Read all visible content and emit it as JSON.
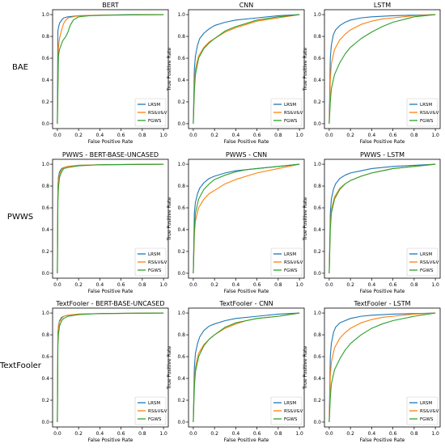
{
  "row_labels": [
    "BAE",
    "PWWS",
    "TextFooler"
  ],
  "colors": {
    "LRSM": "#1f77b4",
    "RS&V&V": "#ff7f0e",
    "FGWS": "#2ca02c"
  },
  "chart_data": [
    {
      "type": "line",
      "title": "BERT",
      "xlabel": "False Positive Rate",
      "ylabel": "",
      "xlim": [
        0,
        1
      ],
      "ylim": [
        0,
        1
      ],
      "xticks": [
        "0.0",
        "0.2",
        "0.4",
        "0.6",
        "0.8",
        "1.0"
      ],
      "yticks": [
        "0.0",
        "0.2",
        "0.4",
        "0.6",
        "0.8",
        "1.0"
      ],
      "legend": "lower-right",
      "series": [
        {
          "name": "LRSM",
          "x": [
            0,
            0.005,
            0.01,
            0.02,
            0.04,
            0.06,
            0.1,
            0.2,
            0.4,
            0.7,
            1
          ],
          "y": [
            0,
            0.85,
            0.88,
            0.92,
            0.95,
            0.97,
            0.98,
            0.99,
            0.995,
            1,
            1
          ]
        },
        {
          "name": "RS&V&V",
          "x": [
            0,
            0.01,
            0.02,
            0.04,
            0.06,
            0.08,
            0.1,
            0.15,
            0.2,
            0.4,
            1
          ],
          "y": [
            0,
            0.7,
            0.78,
            0.86,
            0.92,
            0.95,
            0.97,
            0.98,
            0.99,
            0.995,
            1
          ]
        },
        {
          "name": "FGWS",
          "x": [
            0,
            0.01,
            0.02,
            0.05,
            0.08,
            0.1,
            0.12,
            0.15,
            0.2,
            0.3,
            0.5,
            1
          ],
          "y": [
            0,
            0.62,
            0.68,
            0.76,
            0.8,
            0.84,
            0.9,
            0.95,
            0.98,
            0.99,
            0.995,
            1
          ]
        }
      ]
    },
    {
      "type": "line",
      "title": "CNN",
      "xlabel": "False Positive Rate",
      "ylabel": "True Positive Rate",
      "xlim": [
        0,
        1
      ],
      "ylim": [
        0,
        1
      ],
      "xticks": [
        "0.0",
        "0.2",
        "0.4",
        "0.6",
        "0.8",
        "1.0"
      ],
      "yticks": [
        "0.0",
        "0.2",
        "0.4",
        "0.6",
        "0.8",
        "1.0"
      ],
      "legend": "lower-right",
      "series": [
        {
          "name": "LRSM",
          "x": [
            0,
            0.01,
            0.02,
            0.04,
            0.06,
            0.1,
            0.15,
            0.2,
            0.3,
            0.4,
            0.6,
            0.8,
            1
          ],
          "y": [
            0,
            0.5,
            0.62,
            0.72,
            0.78,
            0.83,
            0.87,
            0.9,
            0.93,
            0.95,
            0.97,
            0.99,
            1
          ]
        },
        {
          "name": "RS&V&V",
          "x": [
            0,
            0.01,
            0.02,
            0.05,
            0.1,
            0.15,
            0.2,
            0.3,
            0.4,
            0.5,
            0.6,
            0.8,
            1
          ],
          "y": [
            0,
            0.35,
            0.5,
            0.62,
            0.7,
            0.75,
            0.78,
            0.84,
            0.88,
            0.91,
            0.94,
            0.97,
            1
          ]
        },
        {
          "name": "FGWS",
          "x": [
            0,
            0.01,
            0.02,
            0.05,
            0.1,
            0.15,
            0.2,
            0.3,
            0.4,
            0.5,
            0.6,
            0.8,
            1
          ],
          "y": [
            0,
            0.3,
            0.45,
            0.6,
            0.69,
            0.74,
            0.78,
            0.85,
            0.89,
            0.92,
            0.95,
            0.98,
            1
          ]
        }
      ]
    },
    {
      "type": "line",
      "title": "LSTM",
      "xlabel": "False Positive Rate",
      "ylabel": "True Positive Rate",
      "xlim": [
        0,
        1
      ],
      "ylim": [
        0,
        1
      ],
      "xticks": [
        "0.0",
        "0.2",
        "0.4",
        "0.6",
        "0.8",
        "1.0"
      ],
      "yticks": [
        "0.0",
        "0.2",
        "0.4",
        "0.6",
        "0.8",
        "1.0"
      ],
      "legend": "lower-right",
      "series": [
        {
          "name": "LRSM",
          "x": [
            0,
            0.01,
            0.02,
            0.04,
            0.06,
            0.1,
            0.15,
            0.2,
            0.3,
            0.4,
            0.6,
            0.8,
            1
          ],
          "y": [
            0,
            0.6,
            0.72,
            0.82,
            0.86,
            0.9,
            0.93,
            0.95,
            0.97,
            0.98,
            0.99,
            0.995,
            1
          ]
        },
        {
          "name": "RS&V&V",
          "x": [
            0,
            0.01,
            0.02,
            0.05,
            0.1,
            0.15,
            0.2,
            0.3,
            0.4,
            0.5,
            0.6,
            0.8,
            1
          ],
          "y": [
            0,
            0.4,
            0.55,
            0.68,
            0.77,
            0.82,
            0.86,
            0.91,
            0.94,
            0.96,
            0.97,
            0.99,
            1
          ]
        },
        {
          "name": "FGWS",
          "x": [
            0,
            0.01,
            0.02,
            0.05,
            0.1,
            0.15,
            0.2,
            0.3,
            0.4,
            0.5,
            0.6,
            0.8,
            1
          ],
          "y": [
            0,
            0.2,
            0.32,
            0.45,
            0.56,
            0.64,
            0.7,
            0.78,
            0.84,
            0.89,
            0.93,
            0.98,
            1
          ]
        }
      ]
    },
    {
      "type": "line",
      "title": "PWWS - BERT-BASE-UNCASED",
      "xlabel": "False Positive Rate",
      "ylabel": "",
      "xlim": [
        0,
        1
      ],
      "ylim": [
        0,
        1
      ],
      "xticks": [
        "0.0",
        "0.2",
        "0.4",
        "0.6",
        "0.8",
        "1.0"
      ],
      "yticks": [
        "0.0",
        "0.2",
        "0.4",
        "0.6",
        "0.8",
        "1.0"
      ],
      "legend": "lower-right",
      "series": [
        {
          "name": "LRSM",
          "x": [
            0,
            0.005,
            0.01,
            0.02,
            0.04,
            0.06,
            0.1,
            0.2,
            0.4,
            1
          ],
          "y": [
            0,
            0.8,
            0.88,
            0.93,
            0.96,
            0.97,
            0.98,
            0.99,
            0.995,
            1
          ]
        },
        {
          "name": "RS&V&V",
          "x": [
            0,
            0.005,
            0.01,
            0.02,
            0.04,
            0.06,
            0.1,
            0.2,
            0.4,
            1
          ],
          "y": [
            0,
            0.75,
            0.85,
            0.91,
            0.95,
            0.97,
            0.98,
            0.99,
            0.995,
            1
          ]
        },
        {
          "name": "FGWS",
          "x": [
            0,
            0.005,
            0.01,
            0.02,
            0.04,
            0.06,
            0.1,
            0.2,
            0.4,
            1
          ],
          "y": [
            0,
            0.65,
            0.78,
            0.88,
            0.93,
            0.96,
            0.97,
            0.985,
            0.995,
            1
          ]
        }
      ]
    },
    {
      "type": "line",
      "title": "PWWS - CNN",
      "xlabel": "False Positive Rate",
      "ylabel": "True Positive Rate",
      "xlim": [
        0,
        1
      ],
      "ylim": [
        0,
        1
      ],
      "xticks": [
        "0.0",
        "0.2",
        "0.4",
        "0.6",
        "0.8",
        "1.0"
      ],
      "yticks": [
        "0.0",
        "0.2",
        "0.4",
        "0.6",
        "0.8",
        "1.0"
      ],
      "legend": "lower-right",
      "series": [
        {
          "name": "LRSM",
          "x": [
            0,
            0.01,
            0.02,
            0.04,
            0.06,
            0.1,
            0.15,
            0.2,
            0.3,
            0.4,
            0.6,
            0.8,
            1
          ],
          "y": [
            0,
            0.55,
            0.65,
            0.73,
            0.78,
            0.83,
            0.87,
            0.89,
            0.92,
            0.94,
            0.96,
            0.98,
            1
          ]
        },
        {
          "name": "RS&V&V",
          "x": [
            0,
            0.01,
            0.02,
            0.05,
            0.1,
            0.15,
            0.2,
            0.3,
            0.4,
            0.5,
            0.6,
            0.8,
            1
          ],
          "y": [
            0,
            0.35,
            0.48,
            0.6,
            0.68,
            0.73,
            0.76,
            0.82,
            0.86,
            0.89,
            0.92,
            0.96,
            1
          ]
        },
        {
          "name": "FGWS",
          "x": [
            0,
            0.01,
            0.02,
            0.05,
            0.1,
            0.15,
            0.2,
            0.3,
            0.4,
            0.5,
            0.6,
            0.8,
            1
          ],
          "y": [
            0,
            0.4,
            0.55,
            0.68,
            0.77,
            0.82,
            0.86,
            0.9,
            0.93,
            0.95,
            0.96,
            0.98,
            1
          ]
        }
      ]
    },
    {
      "type": "line",
      "title": "PWWS - LSTM",
      "xlabel": "False Positive Rate",
      "ylabel": "True Positive Rate",
      "xlim": [
        0,
        1
      ],
      "ylim": [
        0,
        1
      ],
      "xticks": [
        "0.0",
        "0.2",
        "0.4",
        "0.6",
        "0.8",
        "1.0"
      ],
      "yticks": [
        "0.0",
        "0.2",
        "0.4",
        "0.6",
        "0.8",
        "1.0"
      ],
      "legend": "lower-right",
      "series": [
        {
          "name": "LRSM",
          "x": [
            0,
            0.01,
            0.02,
            0.04,
            0.06,
            0.1,
            0.15,
            0.2,
            0.3,
            0.4,
            0.6,
            0.8,
            1
          ],
          "y": [
            0,
            0.55,
            0.68,
            0.77,
            0.82,
            0.87,
            0.9,
            0.92,
            0.94,
            0.96,
            0.98,
            0.99,
            1
          ]
        },
        {
          "name": "RS&V&V",
          "x": [
            0,
            0.01,
            0.02,
            0.05,
            0.1,
            0.15,
            0.2,
            0.3,
            0.4,
            0.5,
            0.6,
            0.8,
            1
          ],
          "y": [
            0,
            0.45,
            0.58,
            0.7,
            0.78,
            0.82,
            0.85,
            0.89,
            0.92,
            0.94,
            0.96,
            0.98,
            1
          ]
        },
        {
          "name": "FGWS",
          "x": [
            0,
            0.01,
            0.02,
            0.05,
            0.1,
            0.15,
            0.2,
            0.3,
            0.4,
            0.5,
            0.6,
            0.8,
            1
          ],
          "y": [
            0,
            0.4,
            0.55,
            0.68,
            0.77,
            0.82,
            0.85,
            0.89,
            0.92,
            0.94,
            0.96,
            0.98,
            1
          ]
        }
      ]
    },
    {
      "type": "line",
      "title": "TextFooler - BERT-BASE-UNCASED",
      "xlabel": "False Positive Rate",
      "ylabel": "",
      "xlim": [
        0,
        1
      ],
      "ylim": [
        0,
        1
      ],
      "xticks": [
        "0.0",
        "0.2",
        "0.4",
        "0.6",
        "0.8",
        "1.0"
      ],
      "yticks": [
        "0.0",
        "0.2",
        "0.4",
        "0.6",
        "0.8",
        "1.0"
      ],
      "legend": "lower-right",
      "series": [
        {
          "name": "LRSM",
          "x": [
            0,
            0.005,
            0.01,
            0.02,
            0.04,
            0.06,
            0.1,
            0.2,
            0.4,
            1
          ],
          "y": [
            0,
            0.82,
            0.88,
            0.93,
            0.96,
            0.97,
            0.98,
            0.99,
            0.995,
            1
          ]
        },
        {
          "name": "RS&V&V",
          "x": [
            0,
            0.005,
            0.01,
            0.02,
            0.04,
            0.06,
            0.1,
            0.2,
            0.4,
            1
          ],
          "y": [
            0,
            0.78,
            0.86,
            0.92,
            0.95,
            0.97,
            0.98,
            0.99,
            0.995,
            1
          ]
        },
        {
          "name": "FGWS",
          "x": [
            0,
            0.005,
            0.01,
            0.02,
            0.04,
            0.06,
            0.1,
            0.2,
            0.4,
            1
          ],
          "y": [
            0,
            0.7,
            0.8,
            0.88,
            0.93,
            0.95,
            0.97,
            0.985,
            0.995,
            1
          ]
        }
      ]
    },
    {
      "type": "line",
      "title": "TextFooler - CNN",
      "xlabel": "False Positive Rate",
      "ylabel": "True Positive Rate",
      "xlim": [
        0,
        1
      ],
      "ylim": [
        0,
        1
      ],
      "xticks": [
        "0.0",
        "0.2",
        "0.4",
        "0.6",
        "0.8",
        "1.0"
      ],
      "yticks": [
        "0.0",
        "0.2",
        "0.4",
        "0.6",
        "0.8",
        "1.0"
      ],
      "legend": "lower-right",
      "series": [
        {
          "name": "LRSM",
          "x": [
            0,
            0.01,
            0.02,
            0.04,
            0.06,
            0.1,
            0.15,
            0.2,
            0.3,
            0.4,
            0.6,
            0.8,
            1
          ],
          "y": [
            0,
            0.5,
            0.63,
            0.72,
            0.78,
            0.84,
            0.88,
            0.9,
            0.93,
            0.95,
            0.97,
            0.99,
            1
          ]
        },
        {
          "name": "RS&V&V",
          "x": [
            0,
            0.01,
            0.02,
            0.05,
            0.1,
            0.15,
            0.2,
            0.3,
            0.4,
            0.5,
            0.6,
            0.8,
            1
          ],
          "y": [
            0,
            0.35,
            0.5,
            0.63,
            0.71,
            0.76,
            0.8,
            0.86,
            0.9,
            0.93,
            0.95,
            0.97,
            1
          ]
        },
        {
          "name": "FGWS",
          "x": [
            0,
            0.01,
            0.02,
            0.05,
            0.1,
            0.15,
            0.2,
            0.3,
            0.4,
            0.5,
            0.6,
            0.8,
            1
          ],
          "y": [
            0,
            0.32,
            0.46,
            0.6,
            0.7,
            0.76,
            0.8,
            0.87,
            0.91,
            0.93,
            0.95,
            0.97,
            1
          ]
        }
      ]
    },
    {
      "type": "line",
      "title": "TextFooler - LSTM",
      "xlabel": "False Positive Rate",
      "ylabel": "True Positive Rate",
      "xlim": [
        0,
        1
      ],
      "ylim": [
        0,
        1
      ],
      "xticks": [
        "0.0",
        "0.2",
        "0.4",
        "0.6",
        "0.8",
        "1.0"
      ],
      "yticks": [
        "0.0",
        "0.2",
        "0.4",
        "0.6",
        "0.8",
        "1.0"
      ],
      "legend": "lower-right",
      "series": [
        {
          "name": "LRSM",
          "x": [
            0,
            0.01,
            0.02,
            0.04,
            0.06,
            0.1,
            0.15,
            0.2,
            0.3,
            0.4,
            0.6,
            0.8,
            1
          ],
          "y": [
            0,
            0.6,
            0.72,
            0.82,
            0.87,
            0.91,
            0.93,
            0.95,
            0.97,
            0.98,
            0.99,
            0.995,
            1
          ]
        },
        {
          "name": "RS&V&V",
          "x": [
            0,
            0.01,
            0.02,
            0.05,
            0.1,
            0.15,
            0.2,
            0.3,
            0.4,
            0.5,
            0.6,
            0.8,
            1
          ],
          "y": [
            0,
            0.42,
            0.55,
            0.68,
            0.77,
            0.82,
            0.86,
            0.91,
            0.94,
            0.96,
            0.97,
            0.99,
            1
          ]
        },
        {
          "name": "FGWS",
          "x": [
            0,
            0.01,
            0.02,
            0.05,
            0.1,
            0.15,
            0.2,
            0.3,
            0.4,
            0.5,
            0.6,
            0.8,
            1
          ],
          "y": [
            0,
            0.22,
            0.35,
            0.48,
            0.58,
            0.66,
            0.72,
            0.8,
            0.86,
            0.9,
            0.93,
            0.97,
            1
          ]
        }
      ]
    }
  ]
}
